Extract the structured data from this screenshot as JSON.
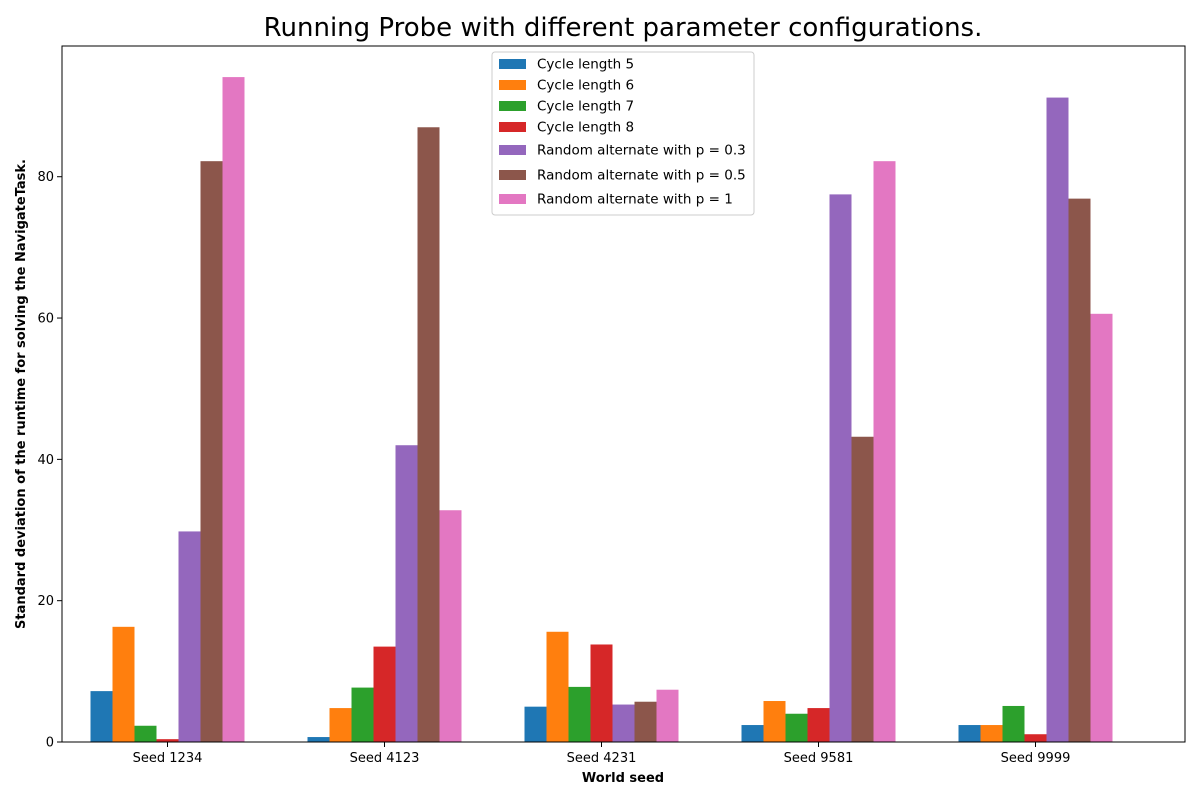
{
  "chart_data": {
    "type": "bar",
    "title": "Running Probe with different parameter configurations.",
    "xlabel": "World seed",
    "ylabel": "Standard deviation of the runtime for solving the NavigateTask.",
    "categories": [
      "Seed 1234",
      "Seed 4123",
      "Seed 4231",
      "Seed 9581",
      "Seed 9999"
    ],
    "ylim": [
      0,
      98.5
    ],
    "yticks": [
      0,
      20,
      40,
      60,
      80
    ],
    "grid": false,
    "legend_position": "top-center",
    "series": [
      {
        "name": "Cycle length 5",
        "color": "#1f77b4",
        "values": [
          7.2,
          0.7,
          5.0,
          2.4,
          2.4
        ]
      },
      {
        "name": "Cycle length 6",
        "color": "#ff7f0e",
        "values": [
          16.3,
          4.8,
          15.6,
          5.8,
          2.4
        ]
      },
      {
        "name": "Cycle length 7",
        "color": "#2ca02c",
        "values": [
          2.3,
          7.7,
          7.8,
          4.0,
          5.1
        ]
      },
      {
        "name": "Cycle length 8",
        "color": "#d62728",
        "values": [
          0.4,
          13.5,
          13.8,
          4.8,
          1.1
        ]
      },
      {
        "name": "Random alternate with p = 0.3",
        "color": "#9467bd",
        "values": [
          29.8,
          42.0,
          5.3,
          77.5,
          91.2
        ]
      },
      {
        "name": "Random alternate with p = 0.5",
        "color": "#8c564b",
        "values": [
          82.2,
          87.0,
          5.7,
          43.2,
          76.9
        ]
      },
      {
        "name": "Random alternate with p = 1",
        "color": "#e377c2",
        "values": [
          94.1,
          32.8,
          7.4,
          82.2,
          60.6
        ]
      }
    ]
  }
}
